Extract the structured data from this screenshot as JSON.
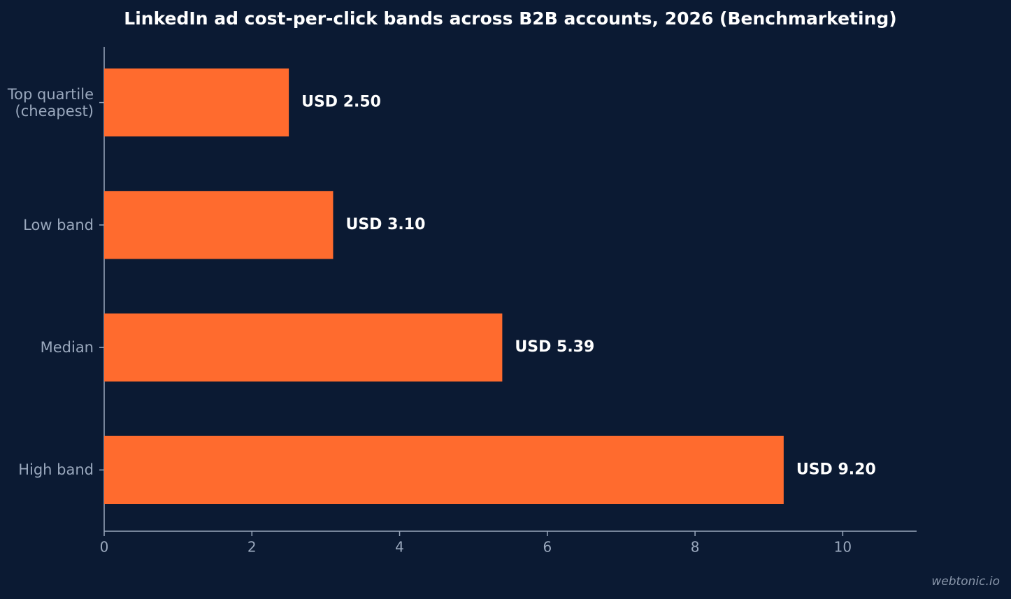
{
  "chart_data": {
    "type": "bar",
    "orientation": "horizontal",
    "title": "LinkedIn ad cost-per-click bands across B2B accounts, 2026 (Benchmarketing)",
    "categories": [
      "Top quartile\n(cheapest)",
      "Low band",
      "Median",
      "High band"
    ],
    "values": [
      2.5,
      3.1,
      5.39,
      9.2
    ],
    "value_labels": [
      "USD 2.50",
      "USD 3.10",
      "USD 5.39",
      "USD 9.20"
    ],
    "color": "#ff6b2e",
    "xlim": [
      0,
      11
    ],
    "xticks": [
      0,
      2,
      4,
      6,
      8,
      10
    ],
    "grid": false
  },
  "footer": {
    "credit": "webtonic.io"
  }
}
